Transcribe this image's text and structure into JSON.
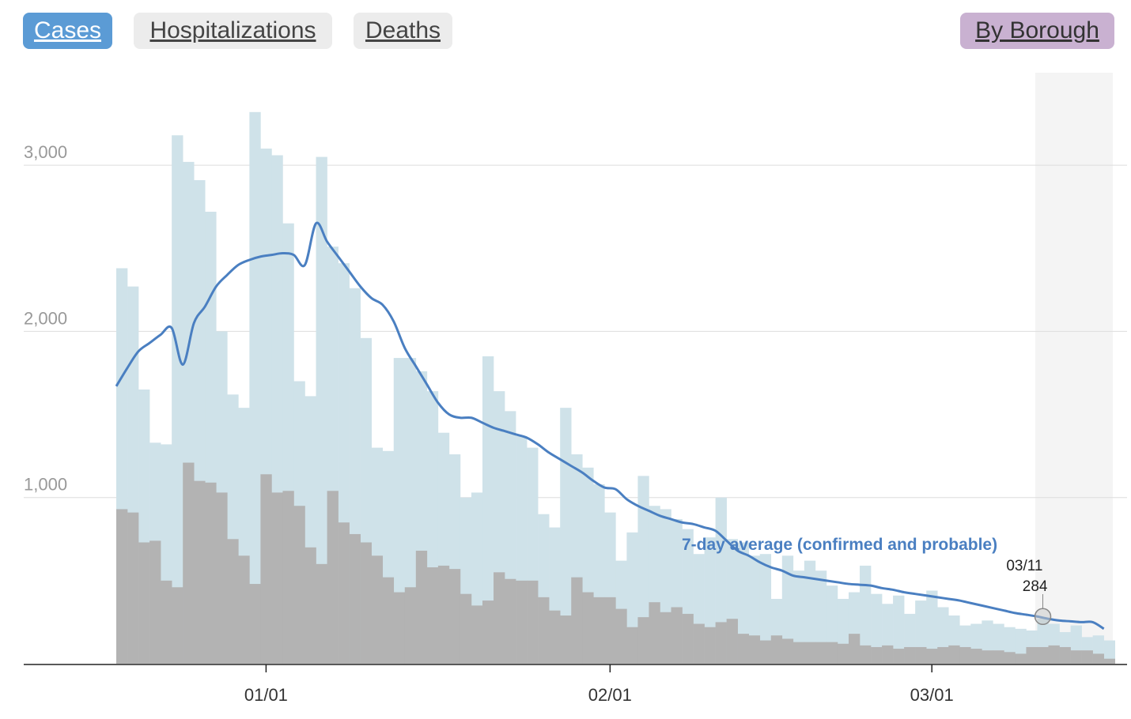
{
  "tabs": {
    "cases": "Cases",
    "hospitalizations": "Hospitalizations",
    "deaths": "Deaths",
    "by_borough": "By Borough"
  },
  "colors": {
    "cases_bar": "#cfe2e9",
    "secondary_bar": "#b3b3b3",
    "avg_line": "#4a7fc1",
    "cases_button": "#5b9bd5",
    "borough_button": "#c9b1d1",
    "highlight_band": "#f4f4f4"
  },
  "chart_data": {
    "type": "bar",
    "start_date": "12/18",
    "x_ticks": [
      "01/01",
      "02/01",
      "03/01"
    ],
    "y_ticks": [
      "1,000",
      "2,000",
      "3,000"
    ],
    "ylim": [
      0,
      3500
    ],
    "grid": true,
    "series": [
      {
        "name": "",
        "values": [
          2380,
          2270,
          1650,
          1330,
          1320,
          3180,
          3020,
          2910,
          2720,
          2000,
          1620,
          1540,
          3320,
          3100,
          3060,
          2650,
          1700,
          1610,
          3050,
          2510,
          2410,
          2260,
          1960,
          1300,
          1280,
          1840,
          1840,
          1760,
          1640,
          1390,
          1260,
          1000,
          1030,
          1850,
          1640,
          1520,
          1370,
          1300,
          900,
          820,
          1540,
          1260,
          1180,
          1080,
          910,
          620,
          790,
          1130,
          950,
          930,
          870,
          810,
          660,
          760,
          1000,
          750,
          730,
          650,
          660,
          390,
          650,
          560,
          620,
          560,
          470,
          390,
          430,
          590,
          420,
          360,
          410,
          300,
          380,
          440,
          340,
          290,
          230,
          240,
          260,
          240,
          220,
          210,
          200,
          270,
          240,
          190,
          230,
          160,
          170,
          140
        ]
      },
      {
        "name": "",
        "values": [
          930,
          910,
          730,
          740,
          500,
          460,
          1210,
          1100,
          1090,
          1030,
          750,
          650,
          480,
          1140,
          1030,
          1040,
          950,
          700,
          600,
          1040,
          850,
          780,
          730,
          650,
          520,
          430,
          460,
          680,
          580,
          590,
          570,
          420,
          350,
          380,
          550,
          510,
          500,
          500,
          400,
          320,
          290,
          520,
          430,
          400,
          400,
          330,
          220,
          280,
          370,
          310,
          340,
          300,
          240,
          220,
          250,
          270,
          180,
          170,
          140,
          170,
          150,
          130,
          130,
          130,
          130,
          120,
          180,
          110,
          100,
          110,
          90,
          100,
          100,
          90,
          100,
          110,
          100,
          90,
          80,
          80,
          70,
          60,
          100,
          100,
          110,
          100,
          80,
          80,
          60,
          30
        ]
      },
      {
        "name": "7-day average (confirmed and probable)",
        "values": [
          1670,
          1780,
          1880,
          1930,
          1980,
          2020,
          1800,
          2050,
          2150,
          2270,
          2340,
          2400,
          2430,
          2450,
          2460,
          2470,
          2460,
          2400,
          2650,
          2540,
          2450,
          2360,
          2270,
          2200,
          2160,
          2060,
          1900,
          1790,
          1680,
          1570,
          1500,
          1480,
          1480,
          1450,
          1420,
          1400,
          1380,
          1360,
          1320,
          1270,
          1230,
          1190,
          1150,
          1100,
          1060,
          1050,
          990,
          950,
          920,
          890,
          870,
          850,
          840,
          820,
          800,
          740,
          680,
          650,
          610,
          580,
          560,
          530,
          520,
          510,
          500,
          490,
          480,
          475,
          470,
          455,
          445,
          430,
          420,
          410,
          400,
          390,
          380,
          365,
          350,
          335,
          320,
          305,
          295,
          284,
          270,
          260,
          255,
          250,
          250,
          210
        ]
      }
    ],
    "annotations": {
      "avg_label": "7-day average (confirmed and probable)",
      "hover_date": "03/11",
      "hover_value": "284"
    }
  }
}
